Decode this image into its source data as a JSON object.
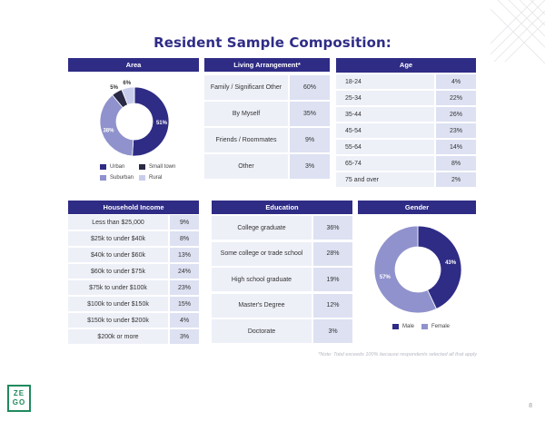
{
  "title": "Resident Sample Composition:",
  "area": {
    "header": "Area",
    "slices": [
      {
        "label": "Urban",
        "pct": "51%",
        "value": 51,
        "color": "#2f2c86"
      },
      {
        "label": "Suburban",
        "pct": "38%",
        "value": 38,
        "color": "#8f92cc"
      },
      {
        "label": "Small town",
        "pct": "5%",
        "value": 5,
        "color": "#2a2a46"
      },
      {
        "label": "Rural",
        "pct": "6%",
        "value": 6,
        "color": "#c9cdec"
      }
    ]
  },
  "living": {
    "header": "Living Arrangement*",
    "rows": [
      {
        "label": "Family / Significant Other",
        "value": "60%"
      },
      {
        "label": "By Myself",
        "value": "35%"
      },
      {
        "label": "Friends / Roommates",
        "value": "9%"
      },
      {
        "label": "Other",
        "value": "3%"
      }
    ]
  },
  "age": {
    "header": "Age",
    "rows": [
      {
        "label": "18-24",
        "value": "4%"
      },
      {
        "label": "25-34",
        "value": "22%"
      },
      {
        "label": "35-44",
        "value": "26%"
      },
      {
        "label": "45-54",
        "value": "23%"
      },
      {
        "label": "55-64",
        "value": "14%"
      },
      {
        "label": "65-74",
        "value": "8%"
      },
      {
        "label": "75 and over",
        "value": "2%"
      }
    ]
  },
  "income": {
    "header": "Household Income",
    "rows": [
      {
        "label": "Less than $25,000",
        "value": "9%"
      },
      {
        "label": "$25k to under $40k",
        "value": "8%"
      },
      {
        "label": "$40k to under $60k",
        "value": "13%"
      },
      {
        "label": "$60k to under $75k",
        "value": "24%"
      },
      {
        "label": "$75k to under $100k",
        "value": "23%"
      },
      {
        "label": "$100k to under $150k",
        "value": "15%"
      },
      {
        "label": "$150k to under $200k",
        "value": "4%"
      },
      {
        "label": "$200k or more",
        "value": "3%"
      }
    ]
  },
  "education": {
    "header": "Education",
    "rows": [
      {
        "label": "College graduate",
        "value": "36%"
      },
      {
        "label": "Some college or trade school",
        "value": "28%"
      },
      {
        "label": "High school graduate",
        "value": "19%"
      },
      {
        "label": "Master's Degree",
        "value": "12%"
      },
      {
        "label": "Doctorate",
        "value": "3%"
      }
    ]
  },
  "gender": {
    "header": "Gender",
    "slices": [
      {
        "label": "Male",
        "pct": "43%",
        "value": 43,
        "color": "#2f2c86"
      },
      {
        "label": "Female",
        "pct": "57%",
        "value": 57,
        "color": "#8f92cc"
      }
    ]
  },
  "note": "*Note: Total exceeds 100% because respondents selected all that apply",
  "page_number": "8",
  "logo": {
    "line1": "ZE",
    "line2": "GO",
    "color": "#1f8a5c"
  }
}
